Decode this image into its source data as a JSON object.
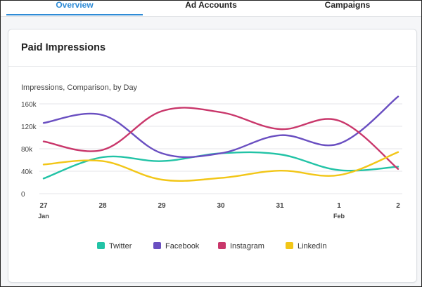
{
  "tabs": [
    {
      "label": "Overview"
    },
    {
      "label": "Ad Accounts"
    },
    {
      "label": "Campaigns"
    }
  ],
  "card": {
    "title": "Paid Impressions"
  },
  "chart_data": {
    "type": "line",
    "title": "Impressions, Comparison, by Day",
    "x": [
      "27",
      "28",
      "29",
      "30",
      "31",
      "1",
      "2"
    ],
    "x_sublabels": [
      "Jan",
      "",
      "",
      "",
      "",
      "Feb",
      ""
    ],
    "yticks": [
      "0",
      "40k",
      "80k",
      "120k",
      "160k"
    ],
    "ylim": [
      0,
      160000
    ],
    "grid": true,
    "legend_position": "bottom",
    "series": [
      {
        "name": "Twitter",
        "color": "#22c3a6",
        "values": [
          27000,
          65000,
          58000,
          72000,
          70000,
          42000,
          48000
        ]
      },
      {
        "name": "Facebook",
        "color": "#6a4fc1",
        "values": [
          126000,
          140000,
          72000,
          72000,
          104000,
          89000,
          173000
        ]
      },
      {
        "name": "Instagram",
        "color": "#c9376b",
        "values": [
          93000,
          78000,
          147000,
          145000,
          115000,
          130000,
          44000
        ]
      },
      {
        "name": "LinkedIn",
        "color": "#f2c617",
        "values": [
          52000,
          58000,
          25000,
          28000,
          41000,
          33000,
          74000
        ]
      }
    ]
  }
}
